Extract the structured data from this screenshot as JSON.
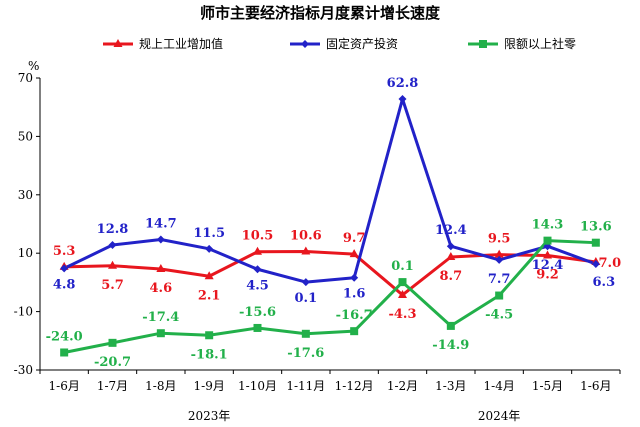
{
  "chart_data": {
    "type": "line",
    "title": "师市主要经济指标月度累计增长速度",
    "y_unit": "%",
    "categories": [
      "1-6月",
      "1-7月",
      "1-8月",
      "1-9月",
      "1-10月",
      "1-11月",
      "1-12月",
      "1-2月",
      "1-3月",
      "1-4月",
      "1-5月",
      "1-6月"
    ],
    "year_groups": [
      {
        "label": "2023年",
        "from": 0,
        "to": 6
      },
      {
        "label": "2024年",
        "from": 7,
        "to": 11
      }
    ],
    "ylim": [
      -30,
      70
    ],
    "yticks": [
      -30,
      -10,
      10,
      30,
      50,
      70
    ],
    "grid": false,
    "legend_position": "top",
    "series": [
      {
        "name": "规上工业增加值",
        "color": "#e8161e",
        "marker": "triangle",
        "values": [
          5.3,
          5.7,
          4.6,
          2.1,
          10.5,
          10.6,
          9.7,
          -4.3,
          8.7,
          9.5,
          9.2,
          7.0
        ],
        "labels": [
          "5.3",
          "5.7",
          "4.6",
          "2.1",
          "10.5",
          "10.6",
          "9.7",
          "-4.3",
          "8.7",
          "9.5",
          "9.2",
          "7.0"
        ]
      },
      {
        "name": "固定资产投资",
        "color": "#2222c8",
        "marker": "diamond",
        "values": [
          4.8,
          12.8,
          14.7,
          11.5,
          4.5,
          0.1,
          1.6,
          62.8,
          12.4,
          7.7,
          12.4,
          6.3
        ],
        "labels": [
          "4.8",
          "12.8",
          "14.7",
          "11.5",
          "4.5",
          "0.1",
          "1.6",
          "62.8",
          "12.4",
          "7.7",
          "12.4",
          "6.3"
        ]
      },
      {
        "name": "限额以上社零",
        "color": "#22b04a",
        "marker": "square",
        "values": [
          -24.0,
          -20.7,
          -17.4,
          -18.1,
          -15.6,
          -17.6,
          -16.7,
          0.1,
          -14.9,
          -4.5,
          14.3,
          13.6
        ],
        "labels": [
          "-24.0",
          "-20.7",
          "-17.4",
          "-18.1",
          "-15.6",
          "-17.6",
          "-16.7",
          "0.1",
          "-14.9",
          "-4.5",
          "14.3",
          "13.6"
        ]
      }
    ]
  }
}
